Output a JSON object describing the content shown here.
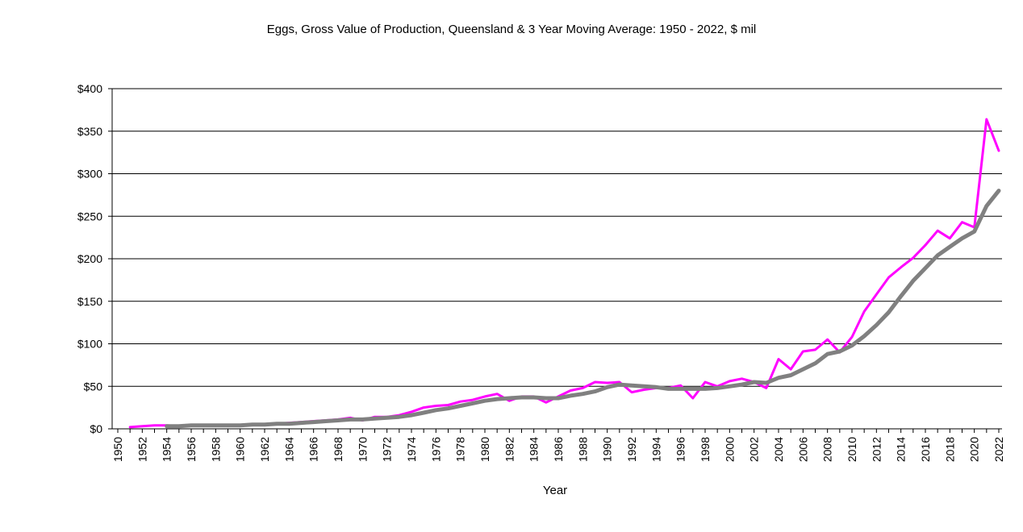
{
  "chart_data": {
    "type": "line",
    "title": "Eggs, Gross Value of Production, Queensland & 3 Year Moving Average: 1950 - 2022, $ mil",
    "xlabel": "Year",
    "ylabel": "",
    "xlim": [
      1950,
      2022
    ],
    "ylim": [
      0,
      400
    ],
    "yticks": [
      {
        "value": 0,
        "label": "$0"
      },
      {
        "value": 50,
        "label": "$50"
      },
      {
        "value": 100,
        "label": "$100"
      },
      {
        "value": 150,
        "label": "$150"
      },
      {
        "value": 200,
        "label": "$200"
      },
      {
        "value": 250,
        "label": "$250"
      },
      {
        "value": 300,
        "label": "$300"
      },
      {
        "value": 350,
        "label": "$350"
      },
      {
        "value": 400,
        "label": "$400"
      }
    ],
    "xticks": [
      "1950",
      "1952",
      "1954",
      "1956",
      "1958",
      "1960",
      "1962",
      "1964",
      "1966",
      "1968",
      "1970",
      "1972",
      "1974",
      "1976",
      "1978",
      "1980",
      "1982",
      "1984",
      "1986",
      "1988",
      "1990",
      "1992",
      "1994",
      "1996",
      "1998",
      "2000",
      "2002",
      "2004",
      "2006",
      "2008",
      "2010",
      "2012",
      "2014",
      "2016",
      "2018",
      "2020",
      "2022"
    ],
    "grid": true,
    "legend": "none",
    "series": [
      {
        "name": "Gross Value of Production",
        "color": "#ff00ff",
        "x": [
          1951,
          1952,
          1953,
          1954,
          1955,
          1956,
          1957,
          1958,
          1959,
          1960,
          1961,
          1962,
          1963,
          1964,
          1965,
          1966,
          1967,
          1968,
          1969,
          1970,
          1971,
          1972,
          1973,
          1974,
          1975,
          1976,
          1977,
          1978,
          1979,
          1980,
          1981,
          1982,
          1983,
          1984,
          1985,
          1986,
          1987,
          1988,
          1989,
          1990,
          1991,
          1992,
          1993,
          1994,
          1995,
          1996,
          1997,
          1998,
          1999,
          2000,
          2001,
          2002,
          2003,
          2004,
          2005,
          2006,
          2007,
          2008,
          2009,
          2010,
          2011,
          2012,
          2013,
          2014,
          2015,
          2016,
          2017,
          2018,
          2019,
          2020,
          2021,
          2022
        ],
        "y": [
          2,
          3,
          4,
          4,
          3,
          4,
          4,
          4,
          4,
          4,
          5,
          5,
          6,
          7,
          8,
          9,
          10,
          11,
          13,
          10,
          14,
          14,
          16,
          20,
          25,
          27,
          28,
          32,
          34,
          38,
          41,
          33,
          38,
          38,
          31,
          38,
          45,
          48,
          55,
          54,
          55,
          43,
          46,
          48,
          48,
          51,
          36,
          55,
          50,
          56,
          59,
          55,
          48,
          82,
          70,
          91,
          93,
          105,
          90,
          108,
          138,
          158,
          178,
          190,
          201,
          216,
          233,
          224,
          243,
          237,
          364,
          327
        ]
      },
      {
        "name": "3 Year Moving Average",
        "color": "#808080",
        "x": [
          1954,
          1955,
          1956,
          1957,
          1958,
          1959,
          1960,
          1961,
          1962,
          1963,
          1964,
          1965,
          1966,
          1967,
          1968,
          1969,
          1970,
          1971,
          1972,
          1973,
          1974,
          1975,
          1976,
          1977,
          1978,
          1979,
          1980,
          1981,
          1982,
          1983,
          1984,
          1985,
          1986,
          1987,
          1988,
          1989,
          1990,
          1991,
          1992,
          1993,
          1994,
          1995,
          1996,
          1997,
          1998,
          1999,
          2000,
          2001,
          2002,
          2003,
          2004,
          2005,
          2006,
          2007,
          2008,
          2009,
          2010,
          2011,
          2012,
          2013,
          2014,
          2015,
          2016,
          2017,
          2018,
          2019,
          2020,
          2021,
          2022
        ],
        "y": [
          3,
          3,
          4,
          4,
          4,
          4,
          4,
          5,
          5,
          6,
          6,
          7,
          8,
          9,
          10,
          11,
          11,
          12,
          13,
          14,
          16,
          19,
          22,
          24,
          27,
          30,
          33,
          35,
          36,
          37,
          37,
          36,
          36,
          39,
          41,
          44,
          49,
          52,
          51,
          50,
          49,
          47,
          47,
          47,
          47,
          48,
          50,
          52,
          55,
          54,
          60,
          63,
          70,
          77,
          88,
          91,
          98,
          109,
          122,
          137,
          156,
          174,
          189,
          204,
          214,
          224,
          232,
          262,
          280
        ]
      }
    ]
  }
}
